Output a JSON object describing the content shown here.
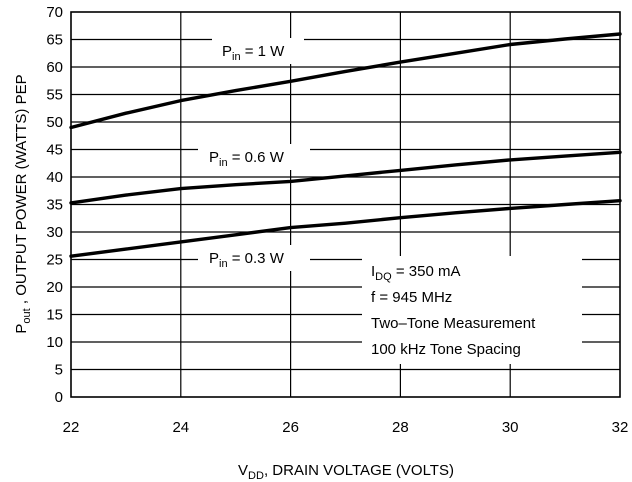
{
  "chart_data": {
    "type": "line",
    "title": "",
    "xlabel": {
      "main": "V",
      "sub": "DD",
      "rest": ", DRAIN VOLTAGE (VOLTS)"
    },
    "ylabel": {
      "main": "P",
      "sub": "out",
      "rest": " , OUTPUT POWER (WATTS) PEP"
    },
    "xlim": [
      22,
      32
    ],
    "ylim": [
      0,
      70
    ],
    "xticks": [
      22,
      24,
      26,
      28,
      30,
      32
    ],
    "yticks": [
      0,
      5,
      10,
      15,
      20,
      25,
      30,
      35,
      40,
      45,
      50,
      55,
      60,
      65,
      70
    ],
    "grid": true,
    "series": [
      {
        "name": "P_in = 1 W",
        "label": {
          "main": "P",
          "sub": "in",
          "rest": " = 1 W"
        },
        "x": [
          22,
          23,
          24,
          25,
          26,
          27,
          28,
          29,
          30,
          31,
          32
        ],
        "y": [
          49,
          51.6,
          53.9,
          55.7,
          57.4,
          59.2,
          60.9,
          62.5,
          64.1,
          65.1,
          66
        ]
      },
      {
        "name": "P_in = 0.6 W",
        "label": {
          "main": "P",
          "sub": "in",
          "rest": " = 0.6 W"
        },
        "x": [
          22,
          23,
          24,
          25,
          26,
          27,
          28,
          29,
          30,
          31,
          32
        ],
        "y": [
          35.3,
          36.7,
          37.9,
          38.6,
          39.2,
          40.2,
          41.2,
          42.2,
          43.1,
          43.8,
          44.5
        ]
      },
      {
        "name": "P_in = 0.3 W",
        "label": {
          "main": "P",
          "sub": "in",
          "rest": " = 0.3 W"
        },
        "x": [
          22,
          23,
          24,
          25,
          26,
          27,
          28,
          29,
          30,
          31,
          32
        ],
        "y": [
          25.6,
          26.9,
          28.2,
          29.5,
          30.8,
          31.6,
          32.6,
          33.5,
          34.3,
          35.0,
          35.7
        ]
      }
    ],
    "annotation": {
      "line1": {
        "main": "I",
        "sub": "DQ",
        "rest": " = 350 mA"
      },
      "line2": "f = 945 MHz",
      "line3": "Two–Tone Measurement",
      "line4": "100 kHz Tone Spacing"
    }
  }
}
